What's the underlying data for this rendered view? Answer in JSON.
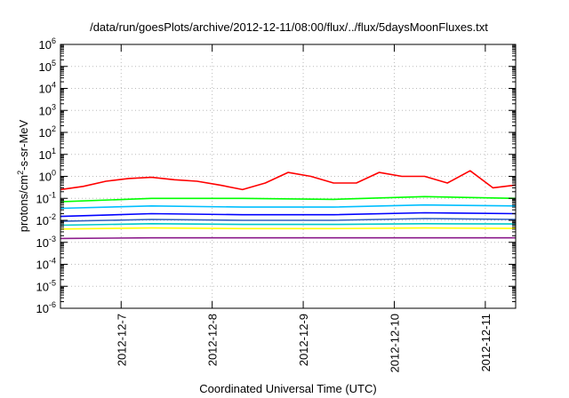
{
  "chart_data": {
    "type": "line",
    "title": "/data/run/goesPlots/archive/2012-12-11/08:00/flux/../flux/5daysMoonFluxes.txt",
    "xlabel": "Coordinated Universal Time (UTC)",
    "ylabel_base": "protons/cm",
    "ylabel_sup": "2",
    "ylabel_rest": "-s-sr-MeV",
    "y_scale": "log",
    "ylim": [
      1e-06,
      1000000.0
    ],
    "y_ticks": [
      {
        "value": 1e-06,
        "base": "10",
        "exp": "-6"
      },
      {
        "value": 1e-05,
        "base": "10",
        "exp": "-5"
      },
      {
        "value": 0.0001,
        "base": "10",
        "exp": "-4"
      },
      {
        "value": 0.001,
        "base": "10",
        "exp": "-3"
      },
      {
        "value": 0.01,
        "base": "10",
        "exp": "-2"
      },
      {
        "value": 0.1,
        "base": "10",
        "exp": "-1"
      },
      {
        "value": 1,
        "base": "10",
        "exp": "0"
      },
      {
        "value": 10,
        "base": "10",
        "exp": "1"
      },
      {
        "value": 100,
        "base": "10",
        "exp": "2"
      },
      {
        "value": 1000,
        "base": "10",
        "exp": "3"
      },
      {
        "value": 10000,
        "base": "10",
        "exp": "4"
      },
      {
        "value": 100000,
        "base": "10",
        "exp": "5"
      },
      {
        "value": 1000000,
        "base": "10",
        "exp": "6"
      }
    ],
    "xlim": [
      "2012-12-06 08:00",
      "2012-12-11 08:00"
    ],
    "x_ticks": [
      "2012-12-7",
      "2012-12-8",
      "2012-12-9",
      "2012-12-10",
      "2012-12-11"
    ],
    "grid": true,
    "legend": "none",
    "series": [
      {
        "color": "#ff0000",
        "x": [
          "2012-12-06 08:00",
          "2012-12-06 14:00",
          "2012-12-06 20:00",
          "2012-12-07 02:00",
          "2012-12-07 08:00",
          "2012-12-07 14:00",
          "2012-12-07 20:00",
          "2012-12-08 02:00",
          "2012-12-08 08:00",
          "2012-12-08 14:00",
          "2012-12-08 20:00",
          "2012-12-09 02:00",
          "2012-12-09 08:00",
          "2012-12-09 14:00",
          "2012-12-09 20:00",
          "2012-12-10 02:00",
          "2012-12-10 08:00",
          "2012-12-10 14:00",
          "2012-12-10 20:00",
          "2012-12-11 02:00",
          "2012-12-11 08:00"
        ],
        "values": [
          0.25,
          0.35,
          0.6,
          0.8,
          0.9,
          0.7,
          0.6,
          0.4,
          0.25,
          0.5,
          1.5,
          1.0,
          0.5,
          0.5,
          1.5,
          1.0,
          1.0,
          0.5,
          1.8,
          0.3,
          0.4
        ]
      },
      {
        "color": "#00ff00",
        "x": [
          "2012-12-06 08:00",
          "2012-12-07 08:00",
          "2012-12-08 08:00",
          "2012-12-09 08:00",
          "2012-12-10 08:00",
          "2012-12-11 08:00"
        ],
        "values": [
          0.07,
          0.1,
          0.1,
          0.09,
          0.12,
          0.1
        ]
      },
      {
        "color": "#00bfff",
        "x": [
          "2012-12-06 08:00",
          "2012-12-07 08:00",
          "2012-12-08 08:00",
          "2012-12-09 08:00",
          "2012-12-10 08:00",
          "2012-12-11 08:00"
        ],
        "values": [
          0.035,
          0.045,
          0.04,
          0.04,
          0.05,
          0.045
        ]
      },
      {
        "color": "#0000ff",
        "x": [
          "2012-12-06 08:00",
          "2012-12-07 08:00",
          "2012-12-08 08:00",
          "2012-12-09 08:00",
          "2012-12-10 08:00",
          "2012-12-11 08:00"
        ],
        "values": [
          0.015,
          0.02,
          0.018,
          0.018,
          0.022,
          0.02
        ]
      },
      {
        "color": "#3060c0",
        "x": [
          "2012-12-06 08:00",
          "2012-12-07 08:00",
          "2012-12-08 08:00",
          "2012-12-09 08:00",
          "2012-12-10 08:00",
          "2012-12-11 08:00"
        ],
        "values": [
          0.009,
          0.011,
          0.01,
          0.01,
          0.012,
          0.011
        ]
      },
      {
        "color": "#00c8c8",
        "x": [
          "2012-12-06 08:00",
          "2012-12-07 08:00",
          "2012-12-08 08:00",
          "2012-12-09 08:00",
          "2012-12-10 08:00",
          "2012-12-11 08:00"
        ],
        "values": [
          0.006,
          0.007,
          0.0065,
          0.0065,
          0.007,
          0.0068
        ]
      },
      {
        "color": "#ffff00",
        "x": [
          "2012-12-06 08:00",
          "2012-12-07 08:00",
          "2012-12-08 08:00",
          "2012-12-09 08:00",
          "2012-12-10 08:00",
          "2012-12-11 08:00"
        ],
        "values": [
          0.004,
          0.0045,
          0.0042,
          0.0042,
          0.0045,
          0.0043
        ]
      },
      {
        "color": "#8b1a8b",
        "x": [
          "2012-12-06 08:00",
          "2012-12-07 08:00",
          "2012-12-08 08:00",
          "2012-12-09 08:00",
          "2012-12-10 08:00",
          "2012-12-11 08:00"
        ],
        "values": [
          0.0015,
          0.0016,
          0.0016,
          0.0016,
          0.0016,
          0.0016
        ]
      }
    ]
  }
}
